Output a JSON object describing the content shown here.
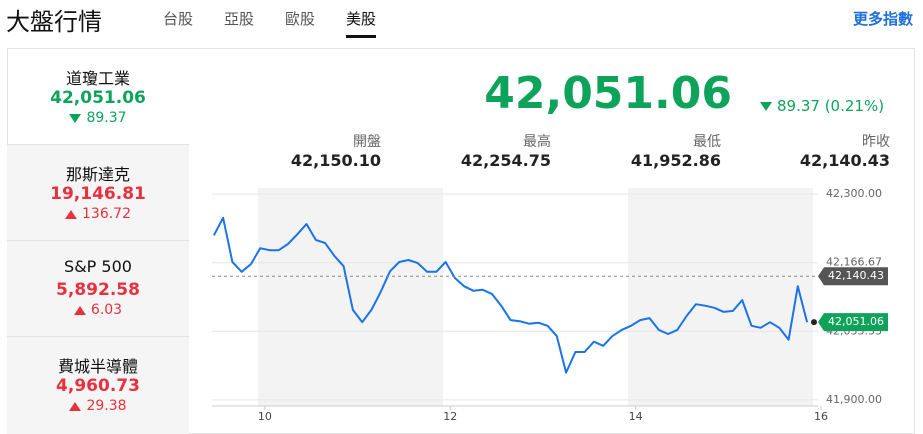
{
  "header": {
    "title": "大盤行情",
    "tabs": [
      "台股",
      "亞股",
      "歐股",
      "美股"
    ],
    "active_tab": 3,
    "more_link": "更多指數"
  },
  "indices": [
    {
      "name": "道瓊工業",
      "value": "42,051.06",
      "change": "89.37",
      "direction": "down"
    },
    {
      "name": "那斯達克",
      "value": "19,146.81",
      "change": "136.72",
      "direction": "up"
    },
    {
      "name": "S&P 500",
      "value": "5,892.58",
      "change": "6.03",
      "direction": "up"
    },
    {
      "name": "費城半導體",
      "value": "4,960.73",
      "change": "29.38",
      "direction": "up"
    }
  ],
  "quote": {
    "price": "42,051.06",
    "change": "89.37 (0.21%)",
    "direction": "down",
    "stats": [
      {
        "label": "開盤",
        "value": "42,150.10"
      },
      {
        "label": "最高",
        "value": "42,254.75"
      },
      {
        "label": "最低",
        "value": "41,952.86"
      },
      {
        "label": "昨收",
        "value": "42,140.43"
      }
    ]
  },
  "chart_data": {
    "type": "line",
    "color": "#1a73e8",
    "x": [
      9.45,
      9.55,
      9.65,
      9.75,
      9.85,
      9.95,
      10.05,
      10.15,
      10.25,
      10.35,
      10.45,
      10.55,
      10.65,
      10.75,
      10.85,
      10.95,
      11.05,
      11.15,
      11.25,
      11.35,
      11.45,
      11.55,
      11.65,
      11.75,
      11.85,
      11.95,
      12.05,
      12.15,
      12.25,
      12.35,
      12.45,
      12.55,
      12.65,
      12.75,
      12.85,
      12.95,
      13.05,
      13.15,
      13.25,
      13.35,
      13.45,
      13.55,
      13.65,
      13.75,
      13.85,
      13.95,
      14.05,
      14.15,
      14.25,
      14.35,
      14.45,
      14.55,
      14.65,
      14.75,
      14.85,
      14.95,
      15.05,
      15.15,
      15.25,
      15.35,
      15.45,
      15.55,
      15.65,
      15.75,
      15.85
    ],
    "values": [
      42220,
      42254,
      42168,
      42149,
      42164,
      42195,
      42191,
      42191,
      42203,
      42222,
      42242,
      42211,
      42205,
      42180,
      42160,
      42075,
      42051,
      42075,
      42110,
      42150,
      42168,
      42172,
      42166,
      42149,
      42149,
      42168,
      42137,
      42121,
      42112,
      42114,
      42106,
      42083,
      42055,
      42053,
      42048,
      42050,
      42044,
      42024,
      41953,
      41993,
      41993,
      42013,
      42005,
      42024,
      42036,
      42044,
      42055,
      42059,
      42036,
      42028,
      42036,
      42063,
      42086,
      42083,
      42079,
      42071,
      42073,
      42094,
      42044,
      42040,
      42051,
      42040,
      42017,
      42121,
      42051
    ],
    "xlim": [
      9.43,
      16
    ],
    "xticks": [
      10,
      12,
      14,
      16
    ],
    "ylim": [
      41888,
      42312
    ],
    "yticks": [
      {
        "value": 41900,
        "label": "41,900.00"
      },
      {
        "value": 42033.33,
        "label": "42,033.33"
      },
      {
        "value": 42166.67,
        "label": "42,166.67"
      },
      {
        "value": 42300,
        "label": "42,300.00"
      }
    ],
    "grid": true,
    "reference_line": {
      "value": 42140.43,
      "label": "42,140.43"
    },
    "last_price": {
      "value": 42051.06,
      "label": "42,051.06"
    }
  }
}
